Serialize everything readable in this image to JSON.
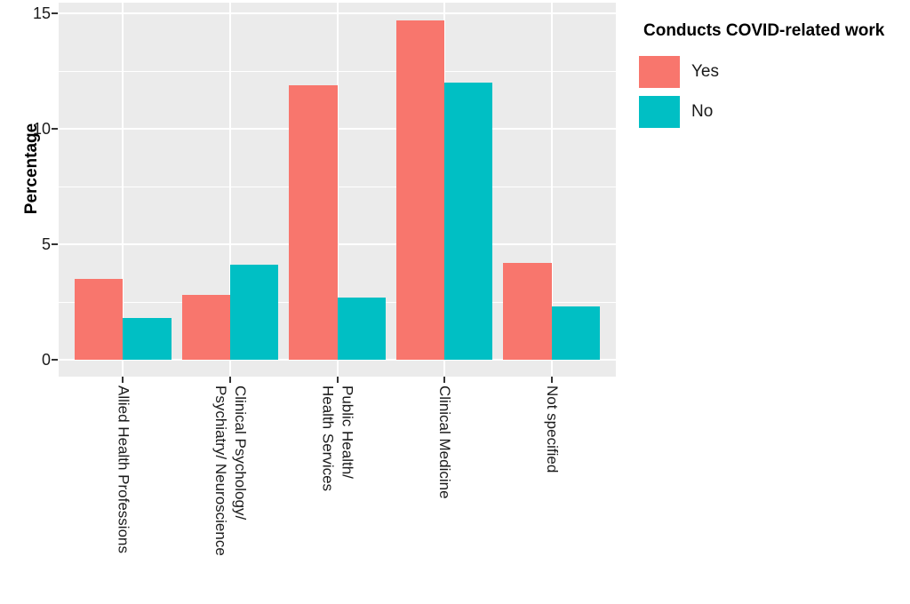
{
  "chart_data": {
    "type": "bar",
    "title": "",
    "xlabel": "",
    "ylabel": "Percentage",
    "legend_title": "Conducts COVID-related work",
    "legend_position": "right",
    "categories": [
      "Allied Health Professions",
      "Clinical Psychology/\nPsychiatry/ Neuroscience",
      "Public Health/\nHealth Services",
      "Clinical Medicine",
      "Not specified"
    ],
    "series": [
      {
        "name": "Yes",
        "color": "#F8766D",
        "values": [
          3.5,
          2.8,
          11.9,
          14.7,
          4.2
        ]
      },
      {
        "name": "No",
        "color": "#00BFC4",
        "values": [
          1.8,
          4.1,
          2.7,
          12.0,
          2.3
        ]
      }
    ],
    "y_ticks": [
      0,
      5,
      10,
      15
    ],
    "y_minor_ticks": [
      2.5,
      7.5,
      12.5
    ],
    "ylim": [
      -0.77,
      15.46
    ],
    "grid": "on",
    "panel_background": "#EBEBEB",
    "grid_color": "#FFFFFF"
  }
}
